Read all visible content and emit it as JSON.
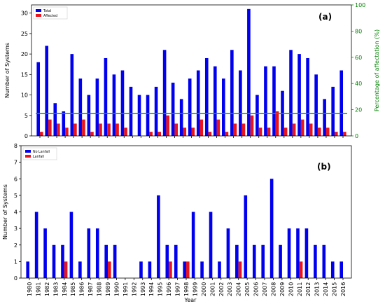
{
  "chart_data": [
    {
      "type": "bar",
      "panel_label": "(a)",
      "xlabel": "",
      "ylabel": "Number of Systems",
      "ylim": [
        0,
        32
      ],
      "yticks": [
        0,
        5,
        10,
        15,
        20,
        25,
        30
      ],
      "y2label": "Percentage of affectation (%)",
      "y2lim": [
        0,
        100
      ],
      "y2ticks": [
        0,
        20,
        40,
        60,
        80,
        100
      ],
      "y2_color": "#008000",
      "categories": [
        "1980",
        "1981",
        "1982",
        "1983",
        "1984",
        "1985",
        "1986",
        "1987",
        "1988",
        "1989",
        "1990",
        "1991",
        "1992",
        "1993",
        "1994",
        "1995",
        "1996",
        "1997",
        "1998",
        "1999",
        "2000",
        "2001",
        "2002",
        "2003",
        "2004",
        "2005",
        "2006",
        "2007",
        "2008",
        "2009",
        "2010",
        "2011",
        "2012",
        "2013",
        "2014",
        "2015",
        "2016"
      ],
      "series": [
        {
          "name": "Total",
          "color": "#0000ee",
          "values": [
            18,
            22,
            8,
            6,
            20,
            14,
            10,
            14,
            19,
            15,
            16,
            12,
            10,
            10,
            12,
            21,
            13,
            9,
            14,
            16,
            19,
            17,
            14,
            21,
            16,
            31,
            10,
            17,
            17,
            11,
            21,
            20,
            19,
            15,
            9,
            12,
            16
          ]
        },
        {
          "name": "Affected",
          "color": "#e8141e",
          "values": [
            1,
            4,
            3,
            2,
            3,
            4,
            1,
            3,
            3,
            3,
            2,
            0,
            0,
            1,
            1,
            5,
            3,
            2,
            2,
            4,
            1,
            4,
            1,
            3,
            3,
            5,
            2,
            2,
            6,
            2,
            3,
            4,
            3,
            2,
            2,
            1,
            1
          ]
        }
      ],
      "reference_line": {
        "axis": "y2",
        "value": 17,
        "color": "#00b000"
      },
      "legend_position": "top-left"
    },
    {
      "type": "bar",
      "panel_label": "(b)",
      "xlabel": "Year",
      "ylabel": "Number of Systems",
      "ylim": [
        0,
        8
      ],
      "yticks": [
        0,
        1,
        2,
        3,
        4,
        5,
        6,
        7,
        8
      ],
      "categories": [
        "1980",
        "1981",
        "1982",
        "1983",
        "1984",
        "1985",
        "1986",
        "1987",
        "1988",
        "1989",
        "1990",
        "1991",
        "1992",
        "1993",
        "1994",
        "1995",
        "1996",
        "1997",
        "1998",
        "1999",
        "2000",
        "2001",
        "2002",
        "2003",
        "2004",
        "2005",
        "2006",
        "2007",
        "2008",
        "2009",
        "2010",
        "2011",
        "2012",
        "2013",
        "2014",
        "2015",
        "2016"
      ],
      "series": [
        {
          "name": "No Lanfall",
          "color": "#0000ee",
          "values": [
            1,
            4,
            3,
            2,
            2,
            4,
            1,
            3,
            3,
            2,
            2,
            0,
            0,
            1,
            1,
            5,
            2,
            2,
            1,
            4,
            1,
            4,
            1,
            3,
            2,
            5,
            2,
            2,
            6,
            2,
            3,
            3,
            3,
            2,
            2,
            1,
            1
          ]
        },
        {
          "name": "Lanfall",
          "color": "#e8141e",
          "values": [
            0,
            0,
            0,
            0,
            1,
            0,
            0,
            0,
            0,
            1,
            0,
            0,
            0,
            0,
            0,
            0,
            1,
            0,
            1,
            0,
            0,
            0,
            0,
            0,
            1,
            0,
            0,
            0,
            0,
            0,
            0,
            1,
            0,
            0,
            0,
            0,
            0
          ]
        }
      ],
      "legend_position": "top-left"
    }
  ]
}
